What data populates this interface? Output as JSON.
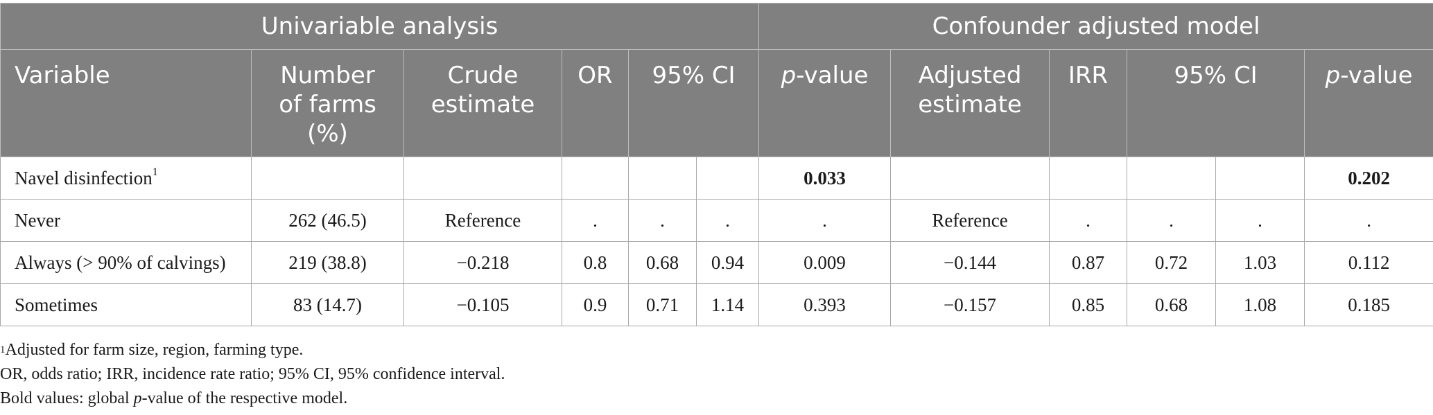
{
  "groups": {
    "univariable": "Univariable analysis",
    "adjusted": "Confounder adjusted model"
  },
  "columns": {
    "variable": "Variable",
    "farms_line1": "Number",
    "farms_line2": "of farms",
    "farms_line3": "(%)",
    "crude_line1": "Crude",
    "crude_line2": "estimate",
    "or": "OR",
    "ci_uni": "95% CI",
    "pvalue_p": "p",
    "pvalue_rest": "-value",
    "adj_line1": "Adjusted",
    "adj_line2": "estimate",
    "irr": "IRR",
    "ci_adj": "95% CI",
    "pvalue2_p": "p",
    "pvalue2_rest": "-value"
  },
  "rows": [
    {
      "variable": "Navel disinfection",
      "sup": "1",
      "farms": "",
      "crude": "",
      "or": "",
      "ci_low": "",
      "ci_high": "",
      "p": "0.033",
      "adj": "",
      "irr": "",
      "ci2_low": "",
      "ci2_high": "",
      "p2": "0.202"
    },
    {
      "variable": "Never",
      "farms": "262 (46.5)",
      "crude": "Reference",
      "or": ".",
      "ci_low": ".",
      "ci_high": ".",
      "p": ".",
      "adj": "Reference",
      "irr": ".",
      "ci2_low": ".",
      "ci2_high": ".",
      "p2": "."
    },
    {
      "variable": "Always (> 90% of calvings)",
      "farms": "219 (38.8)",
      "crude": "−0.218",
      "or": "0.8",
      "ci_low": "0.68",
      "ci_high": "0.94",
      "p": "0.009",
      "adj": "−0.144",
      "irr": "0.87",
      "ci2_low": "0.72",
      "ci2_high": "1.03",
      "p2": "0.112"
    },
    {
      "variable": "Sometimes",
      "farms": "83 (14.7)",
      "crude": "−0.105",
      "or": "0.9",
      "ci_low": "0.71",
      "ci_high": "1.14",
      "p": "0.393",
      "adj": "−0.157",
      "irr": "0.85",
      "ci2_low": "0.68",
      "ci2_high": "1.08",
      "p2": "0.185"
    }
  ],
  "footnotes": {
    "fn1_sup": "1",
    "fn1": "Adjusted for farm size, region, farming type.",
    "fn2": "OR, odds ratio; IRR, incidence rate ratio; 95% CI, 95% confidence interval.",
    "fn3_pre": "Bold values: global ",
    "fn3_p": "p",
    "fn3_post": "-value of the respective model."
  }
}
